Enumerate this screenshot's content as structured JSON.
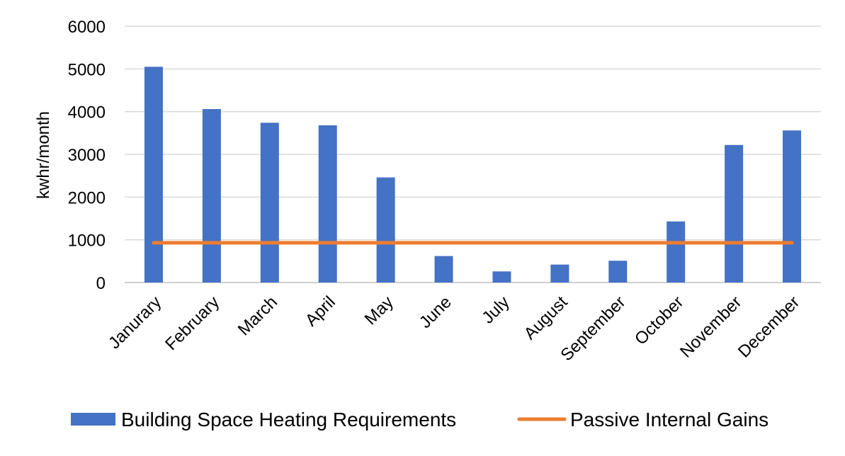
{
  "chart_data": {
    "type": "bar",
    "categories": [
      "Janurary",
      "February",
      "March",
      "April",
      "May",
      "June",
      "July",
      "August",
      "September",
      "October",
      "November",
      "December"
    ],
    "series": [
      {
        "name": "Building Space Heating Requirements",
        "type": "bar",
        "color": "#4472C4",
        "values": [
          5050,
          4060,
          3740,
          3680,
          2460,
          620,
          260,
          420,
          510,
          1430,
          3220,
          3560
        ]
      },
      {
        "name": "Passive Internal Gains",
        "type": "line",
        "color": "#ED7D31",
        "values": [
          930,
          930,
          930,
          930,
          930,
          930,
          930,
          930,
          930,
          930,
          930,
          930
        ]
      }
    ],
    "title": "",
    "xlabel": "",
    "ylabel": "kwhr/month",
    "ylim": [
      0,
      6000
    ],
    "yticks": [
      0,
      1000,
      2000,
      3000,
      4000,
      5000,
      6000
    ],
    "grid": true,
    "legend_position": "bottom"
  }
}
